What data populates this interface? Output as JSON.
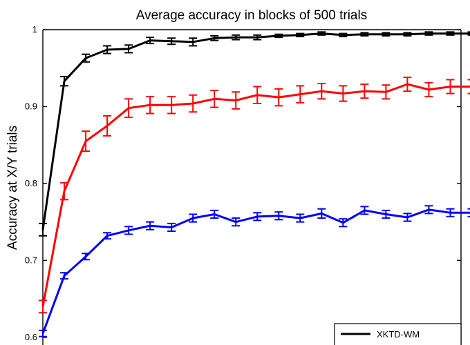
{
  "chart_data": {
    "type": "line",
    "title": "Average accuracy in blocks of 500 trials",
    "xlabel": "",
    "ylabel": "Accuracy at X/Y trials",
    "ylim": [
      0.59,
      1.0
    ],
    "xlim": [
      1,
      20.5
    ],
    "yticks": [
      "0.6",
      "0.7",
      "0.8",
      "0.9",
      "1"
    ],
    "ytick_values": [
      0.6,
      0.7,
      0.8,
      0.9,
      1.0
    ],
    "grid": false,
    "legend_position": "bottom-right",
    "x": [
      1,
      2,
      3,
      4,
      5,
      6,
      7,
      8,
      9,
      10,
      11,
      12,
      13,
      14,
      15,
      16,
      17,
      18,
      19,
      20,
      21
    ],
    "series": [
      {
        "name": "XKTD-WM",
        "color": "#000000",
        "values": [
          0.74,
          0.933,
          0.963,
          0.974,
          0.975,
          0.986,
          0.985,
          0.984,
          0.989,
          0.99,
          0.99,
          0.992,
          0.993,
          0.995,
          0.993,
          0.994,
          0.994,
          0.994,
          0.995,
          0.995,
          0.995
        ],
        "errors": [
          0.008,
          0.006,
          0.005,
          0.005,
          0.005,
          0.004,
          0.004,
          0.005,
          0.003,
          0.003,
          0.003,
          0.002,
          0.002,
          0.002,
          0.002,
          0.002,
          0.002,
          0.002,
          0.002,
          0.002,
          0.002
        ]
      },
      {
        "color": "#ff0000",
        "values": [
          0.64,
          0.79,
          0.855,
          0.875,
          0.898,
          0.902,
          0.902,
          0.904,
          0.91,
          0.908,
          0.915,
          0.912,
          0.916,
          0.92,
          0.917,
          0.92,
          0.919,
          0.929,
          0.922,
          0.926,
          0.926
        ],
        "errors": [
          0.008,
          0.011,
          0.013,
          0.013,
          0.012,
          0.011,
          0.011,
          0.011,
          0.011,
          0.011,
          0.011,
          0.011,
          0.011,
          0.01,
          0.01,
          0.009,
          0.009,
          0.009,
          0.009,
          0.009,
          0.009
        ]
      },
      {
        "color": "#0000ff",
        "values": [
          0.605,
          0.68,
          0.705,
          0.732,
          0.739,
          0.745,
          0.743,
          0.755,
          0.76,
          0.75,
          0.757,
          0.758,
          0.755,
          0.761,
          0.749,
          0.765,
          0.76,
          0.756,
          0.766,
          0.762,
          0.762
        ],
        "errors": [
          0.004,
          0.004,
          0.004,
          0.004,
          0.005,
          0.005,
          0.005,
          0.005,
          0.005,
          0.005,
          0.005,
          0.005,
          0.005,
          0.006,
          0.005,
          0.005,
          0.005,
          0.005,
          0.005,
          0.005,
          0.005
        ]
      }
    ]
  }
}
